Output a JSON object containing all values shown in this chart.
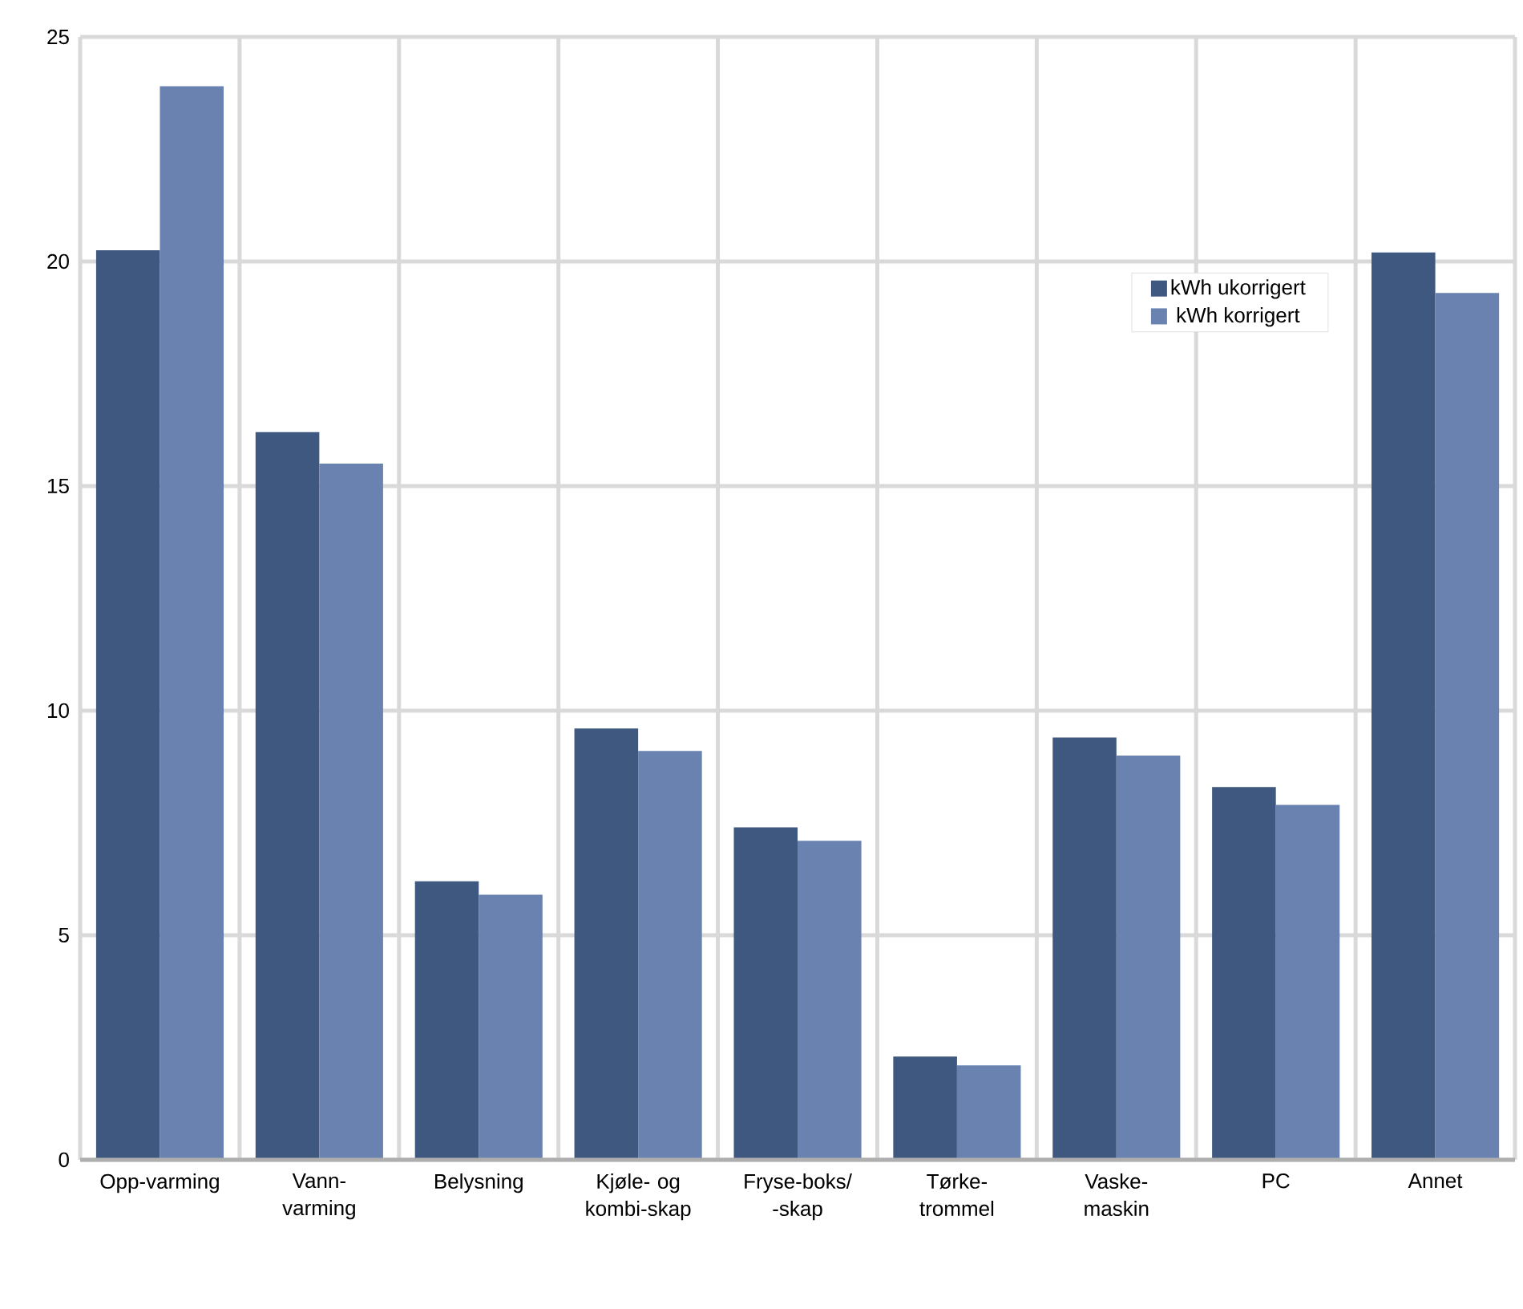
{
  "chart_data": {
    "type": "bar",
    "categories": [
      "Opp-varming",
      "Vann-varming",
      "Belysning",
      "Kjøle- og kombi-skap",
      "Fryse-boks/ -skap",
      "Tørke-trommel",
      "Vaske-maskin",
      "PC",
      "Annet"
    ],
    "series": [
      {
        "name": "kWh ukorrigert",
        "color": "#3f5880",
        "values": [
          20.25,
          16.2,
          6.2,
          9.6,
          7.4,
          2.3,
          9.4,
          8.3,
          20.2
        ]
      },
      {
        "name": "kWh korrigert",
        "color": "#6a82b0",
        "values": [
          23.9,
          15.5,
          5.9,
          9.1,
          7.1,
          2.1,
          9.0,
          7.9,
          19.3
        ]
      }
    ],
    "ylim": [
      0,
      25
    ],
    "yticks": [
      0,
      5,
      10,
      15,
      20,
      25
    ],
    "grid": true,
    "legend": "top right"
  }
}
